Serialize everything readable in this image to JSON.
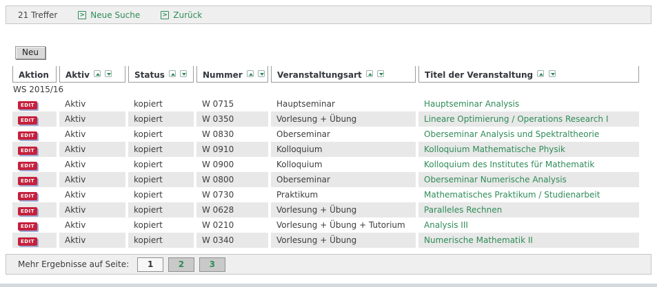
{
  "top_bar": {
    "results_count": "21 Treffer",
    "new_search_label": "Neue Suche",
    "back_label": "Zurück",
    "link_icon_glyph": ">"
  },
  "toolbar": {
    "new_button_label": "Neu"
  },
  "table": {
    "columns": [
      {
        "label": "Aktion",
        "sortable": false
      },
      {
        "label": "Aktiv",
        "sortable": true
      },
      {
        "label": "Status",
        "sortable": true
      },
      {
        "label": "Nummer",
        "sortable": true
      },
      {
        "label": "Veranstaltungsart",
        "sortable": true
      },
      {
        "label": "Titel der Veranstaltung",
        "sortable": true
      }
    ],
    "group_label": "WS 2015/16",
    "edit_action_label": "EDIT",
    "rows": [
      {
        "aktiv": "Aktiv",
        "status": "kopiert",
        "nummer": "W 0715",
        "art": "Hauptseminar",
        "titel": "Hauptseminar Analysis"
      },
      {
        "aktiv": "Aktiv",
        "status": "kopiert",
        "nummer": "W 0350",
        "art": "Vorlesung + Übung",
        "titel": "Lineare Optimierung / Operations Research I"
      },
      {
        "aktiv": "Aktiv",
        "status": "kopiert",
        "nummer": "W 0830",
        "art": "Oberseminar",
        "titel": "Oberseminar Analysis und Spektraltheorie"
      },
      {
        "aktiv": "Aktiv",
        "status": "kopiert",
        "nummer": "W 0910",
        "art": "Kolloquium",
        "titel": "Kolloquium Mathematische Physik"
      },
      {
        "aktiv": "Aktiv",
        "status": "kopiert",
        "nummer": "W 0900",
        "art": "Kolloquium",
        "titel": "Kolloquium des Institutes für Mathematik"
      },
      {
        "aktiv": "Aktiv",
        "status": "kopiert",
        "nummer": "W 0800",
        "art": "Oberseminar",
        "titel": "Oberseminar Numerische Analysis"
      },
      {
        "aktiv": "Aktiv",
        "status": "kopiert",
        "nummer": "W 0730",
        "art": "Praktikum",
        "titel": "Mathematisches Praktikum / Studienarbeit"
      },
      {
        "aktiv": "Aktiv",
        "status": "kopiert",
        "nummer": "W 0628",
        "art": "Vorlesung + Übung",
        "titel": "Paralleles Rechnen"
      },
      {
        "aktiv": "Aktiv",
        "status": "kopiert",
        "nummer": "W 0210",
        "art": "Vorlesung + Übung + Tutorium",
        "titel": "Analysis III"
      },
      {
        "aktiv": "Aktiv",
        "status": "kopiert",
        "nummer": "W 0340",
        "art": "Vorlesung + Übung",
        "titel": "Numerische Mathematik II"
      }
    ]
  },
  "pagination": {
    "label": "Mehr Ergebnisse auf Seite:",
    "pages": [
      "1",
      "2",
      "3"
    ],
    "current_page": "1"
  },
  "colors": {
    "link_green": "#2e8b57",
    "edit_red": "#c5203c",
    "edit_shadow_blue": "#9da8d4",
    "row_stripe": "#e8e8e8",
    "bar_background": "#efefef"
  }
}
